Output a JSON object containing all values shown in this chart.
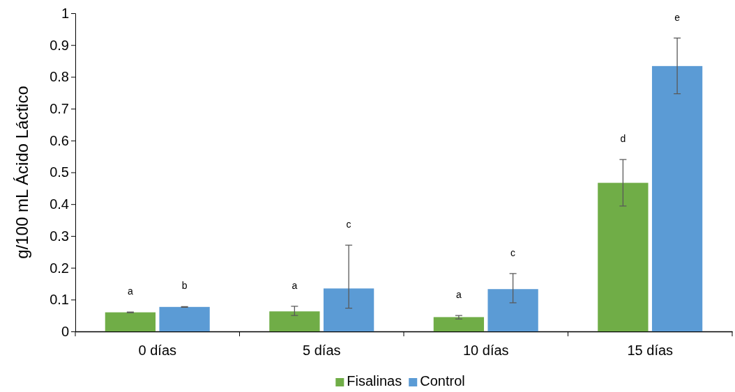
{
  "chart_data": {
    "type": "bar",
    "ylabel": "g/100 mL Ácido Láctico",
    "categories": [
      "0 días",
      "5 días",
      "10 días",
      "15 días"
    ],
    "series": [
      {
        "name": "Fisalinas",
        "color": "#70ad47",
        "values": [
          0.06,
          0.063,
          0.045,
          0.467
        ],
        "errors": [
          [
            0.059,
            0.061
          ],
          [
            0.05,
            0.079
          ],
          [
            0.039,
            0.05
          ],
          [
            0.394,
            0.54
          ]
        ]
      },
      {
        "name": "Control",
        "color": "#5b9bd5",
        "values": [
          0.077,
          0.135,
          0.133,
          0.834
        ],
        "errors": [
          [
            0.076,
            0.078
          ],
          [
            0.073,
            0.271
          ],
          [
            0.09,
            0.182
          ],
          [
            0.747,
            0.922
          ]
        ]
      }
    ],
    "ylim": [
      0,
      1
    ],
    "yticks": [
      0,
      {
        "value": 0.1,
        "label": "0.1"
      },
      {
        "value": 0.2,
        "label": "0.2"
      },
      {
        "value": 0.3,
        "label": "0.3"
      },
      {
        "value": 0.4,
        "label": "0.4"
      },
      {
        "value": 0.5,
        "label": "0.5"
      },
      {
        "value": 0.6,
        "label": "0.6"
      },
      {
        "value": 0.7,
        "label": "0.7"
      },
      {
        "value": 0.8,
        "label": "0.8"
      },
      {
        "value": 0.9,
        "label": "0.9"
      },
      1
    ],
    "legend": "bottom",
    "annotations": [
      "a",
      "b",
      "a",
      "c",
      "a",
      "c",
      "d",
      "e"
    ]
  }
}
